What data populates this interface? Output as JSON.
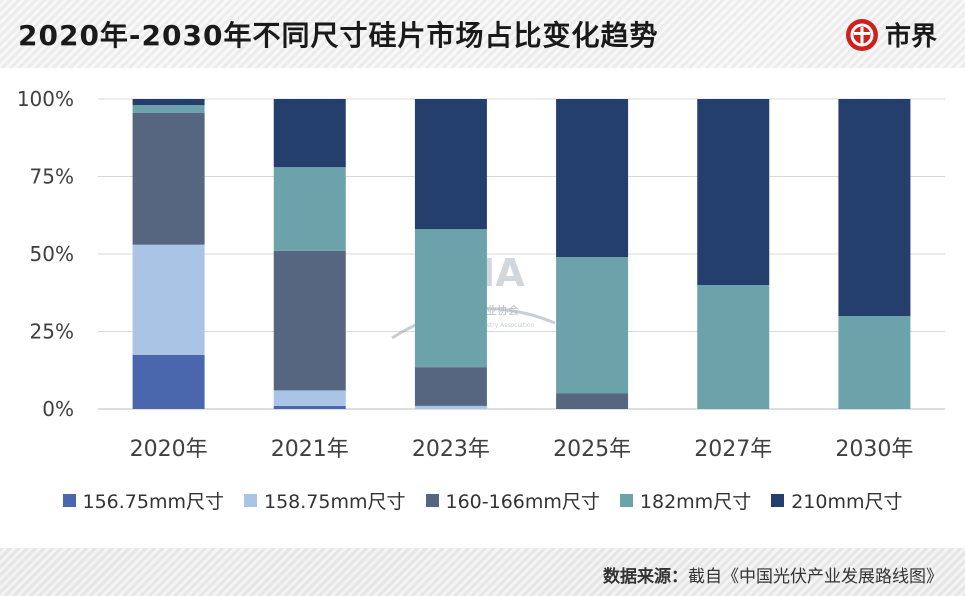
{
  "header": {
    "title": "2020年-2030年不同尺寸硅片市场占比变化趋势",
    "brand": "市界"
  },
  "watermark": {
    "title": "CPIA",
    "subtitle": "中国光伏行业协会",
    "english": "China Photovoltaic Industry Association"
  },
  "footer": {
    "source_label": "数据来源：",
    "source_text": "截自《中国光伏产业发展路线图》"
  },
  "chart_data": {
    "type": "bar",
    "stacked": true,
    "title": "2020年-2030年不同尺寸硅片市场占比变化趋势",
    "categories": [
      "2020年",
      "2021年",
      "2023年",
      "2025年",
      "2027年",
      "2030年"
    ],
    "y_ticks": [
      "0%",
      "25%",
      "50%",
      "75%",
      "100%"
    ],
    "ylim": [
      0,
      100
    ],
    "grid": true,
    "legend_position": "bottom",
    "series": [
      {
        "name": "156.75mm尺寸",
        "color": "#4a66ad",
        "values": [
          17.5,
          1,
          0,
          0,
          0,
          0
        ]
      },
      {
        "name": "158.75mm尺寸",
        "color": "#aac4e6",
        "values": [
          35.5,
          5,
          1,
          0,
          0,
          0
        ]
      },
      {
        "name": "160-166mm尺寸",
        "color": "#566580",
        "values": [
          42.5,
          45,
          12.5,
          5,
          0,
          0
        ]
      },
      {
        "name": "182mm尺寸",
        "color": "#6ca3aa",
        "values": [
          2.5,
          27,
          44.5,
          44,
          40,
          30
        ]
      },
      {
        "name": "210mm尺寸",
        "color": "#243f6c",
        "values": [
          2,
          22,
          42,
          51,
          60,
          70
        ]
      }
    ]
  }
}
